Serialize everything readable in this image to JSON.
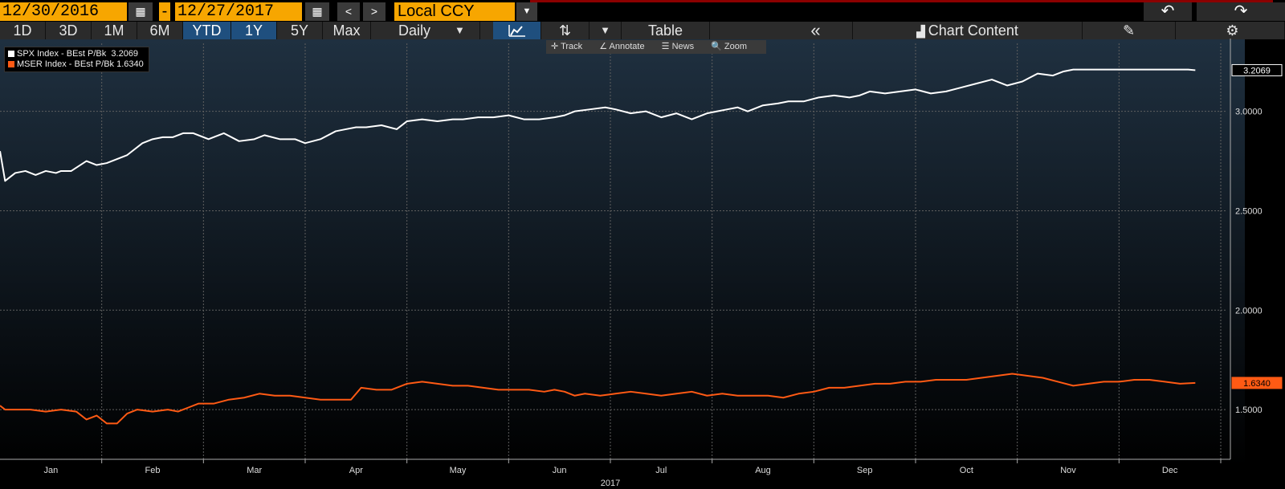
{
  "toolbar": {
    "start_date": "12/30/2016",
    "end_date": "12/27/2017",
    "dash": "-",
    "prev": "<",
    "next": ">",
    "currency": "Local CCY",
    "dropdown_glyph": "▼",
    "undo_glyph": "↶",
    "redo_glyph": "↷",
    "calendar_glyph": "▦"
  },
  "periods": [
    "1D",
    "3D",
    "1M",
    "6M",
    "YTD",
    "1Y",
    "5Y",
    "Max"
  ],
  "active_periods": [
    "YTD",
    "1Y"
  ],
  "frequency": "Daily",
  "view": {
    "line_glyph": "📈",
    "bars_glyph": "⇅",
    "table_label": "Table",
    "collapse_glyph": "«",
    "chart_content_label": "Chart Content",
    "edit_glyph": "✎",
    "settings_glyph": "⚙"
  },
  "chart_tools": {
    "track": "Track",
    "annotate": "Annotate",
    "news": "News",
    "zoom": "Zoom"
  },
  "colors": {
    "spx": "#ffffff",
    "mser": "#ff5a14",
    "accent_orange": "#f7a600",
    "active_tab": "#1f4f7e",
    "grid": "#5f5f5f",
    "bg_top": "#1f3040",
    "bg_bottom": "#000000"
  },
  "chart_data": {
    "type": "line",
    "x_labels": [
      "Jan",
      "Feb",
      "Mar",
      "Apr",
      "May",
      "Jun",
      "Jul",
      "Aug",
      "Sep",
      "Oct",
      "Nov",
      "Dec"
    ],
    "x_year": "2017",
    "ylim": [
      1.25,
      3.35
    ],
    "y_ticks": [
      "1.5000",
      "2.0000",
      "2.5000",
      "3.0000"
    ],
    "grid": true,
    "legend_position": "top-left",
    "series": [
      {
        "name": "SPX Index - BEst P/Bk",
        "last": "3.2069",
        "color": "#ffffff",
        "x": [
          0,
          0.05,
          0.15,
          0.25,
          0.35,
          0.45,
          0.55,
          0.6,
          0.7,
          0.85,
          0.95,
          1.05,
          1.25,
          1.4,
          1.5,
          1.6,
          1.7,
          1.8,
          1.9,
          2.05,
          2.2,
          2.35,
          2.5,
          2.6,
          2.75,
          2.9,
          3.0,
          3.15,
          3.3,
          3.4,
          3.5,
          3.6,
          3.75,
          3.9,
          4.0,
          4.15,
          4.3,
          4.45,
          4.55,
          4.7,
          4.85,
          5.0,
          5.15,
          5.3,
          5.45,
          5.55,
          5.65,
          5.8,
          5.95,
          6.05,
          6.2,
          6.35,
          6.5,
          6.65,
          6.8,
          6.95,
          7.05,
          7.15,
          7.25,
          7.35,
          7.5,
          7.65,
          7.75,
          7.9,
          8.05,
          8.2,
          8.35,
          8.45,
          8.55,
          8.7,
          8.85,
          9.0,
          9.15,
          9.3,
          9.45,
          9.6,
          9.75,
          9.9,
          10.05,
          10.2,
          10.35,
          10.45,
          10.55,
          10.7,
          10.85,
          11.0,
          11.15,
          11.25,
          11.4,
          11.55,
          11.68,
          11.75
        ],
        "y": [
          2.8,
          2.65,
          2.69,
          2.7,
          2.68,
          2.7,
          2.69,
          2.7,
          2.7,
          2.75,
          2.73,
          2.74,
          2.78,
          2.84,
          2.86,
          2.87,
          2.87,
          2.89,
          2.89,
          2.86,
          2.89,
          2.85,
          2.86,
          2.88,
          2.86,
          2.86,
          2.84,
          2.86,
          2.9,
          2.91,
          2.92,
          2.92,
          2.93,
          2.91,
          2.95,
          2.96,
          2.95,
          2.96,
          2.96,
          2.97,
          2.97,
          2.98,
          2.96,
          2.96,
          2.97,
          2.98,
          3.0,
          3.01,
          3.02,
          3.01,
          2.99,
          3.0,
          2.97,
          2.99,
          2.96,
          2.99,
          3.0,
          3.01,
          3.02,
          3.0,
          3.03,
          3.04,
          3.05,
          3.05,
          3.07,
          3.08,
          3.07,
          3.08,
          3.1,
          3.09,
          3.1,
          3.11,
          3.09,
          3.1,
          3.12,
          3.14,
          3.16,
          3.13,
          3.15,
          3.19,
          3.18,
          3.2,
          3.21,
          3.21,
          3.21,
          3.21,
          3.21,
          3.21,
          3.21,
          3.21,
          3.21,
          3.2069
        ]
      },
      {
        "name": "MSER Index - BEst P/Bk",
        "last": "1.6340",
        "color": "#ff5a14",
        "x": [
          0,
          0.05,
          0.3,
          0.45,
          0.6,
          0.75,
          0.85,
          0.95,
          1.05,
          1.15,
          1.25,
          1.35,
          1.5,
          1.65,
          1.75,
          1.85,
          1.95,
          2.1,
          2.25,
          2.4,
          2.55,
          2.7,
          2.85,
          3.0,
          3.15,
          3.3,
          3.45,
          3.55,
          3.7,
          3.85,
          4.0,
          4.15,
          4.3,
          4.45,
          4.6,
          4.75,
          4.9,
          5.05,
          5.2,
          5.35,
          5.45,
          5.55,
          5.65,
          5.75,
          5.9,
          6.05,
          6.2,
          6.35,
          6.5,
          6.65,
          6.8,
          6.95,
          7.1,
          7.25,
          7.4,
          7.55,
          7.7,
          7.85,
          8.0,
          8.15,
          8.3,
          8.45,
          8.6,
          8.75,
          8.9,
          9.05,
          9.2,
          9.35,
          9.5,
          9.65,
          9.8,
          9.95,
          10.1,
          10.25,
          10.4,
          10.55,
          10.7,
          10.85,
          11.0,
          11.15,
          11.3,
          11.45,
          11.6,
          11.75
        ],
        "y": [
          1.52,
          1.5,
          1.5,
          1.49,
          1.5,
          1.49,
          1.45,
          1.47,
          1.43,
          1.43,
          1.48,
          1.5,
          1.49,
          1.5,
          1.49,
          1.51,
          1.53,
          1.53,
          1.55,
          1.56,
          1.58,
          1.57,
          1.57,
          1.56,
          1.55,
          1.55,
          1.55,
          1.61,
          1.6,
          1.6,
          1.63,
          1.64,
          1.63,
          1.62,
          1.62,
          1.61,
          1.6,
          1.6,
          1.6,
          1.59,
          1.6,
          1.59,
          1.57,
          1.58,
          1.57,
          1.58,
          1.59,
          1.58,
          1.57,
          1.58,
          1.59,
          1.57,
          1.58,
          1.57,
          1.57,
          1.57,
          1.56,
          1.58,
          1.59,
          1.61,
          1.61,
          1.62,
          1.63,
          1.63,
          1.64,
          1.64,
          1.65,
          1.65,
          1.65,
          1.66,
          1.67,
          1.68,
          1.67,
          1.66,
          1.64,
          1.62,
          1.63,
          1.64,
          1.64,
          1.65,
          1.65,
          1.64,
          1.63,
          1.634
        ]
      }
    ]
  }
}
